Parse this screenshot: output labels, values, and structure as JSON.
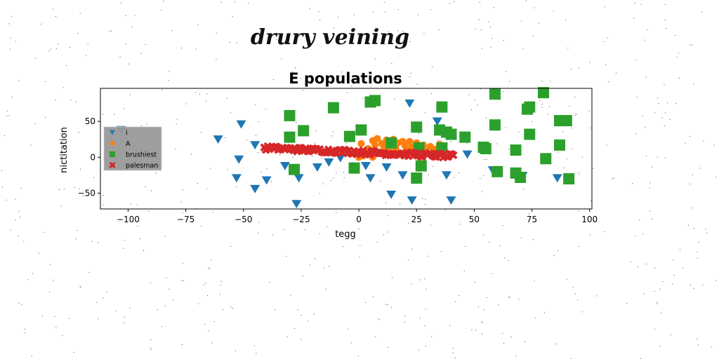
{
  "figure": {
    "suptitle": "drury veining"
  },
  "chart_data": {
    "type": "scatter",
    "title": "E populations",
    "xlabel": "tegg",
    "ylabel": "nictitation",
    "xlim": [
      -112,
      101
    ],
    "ylim": [
      -72,
      96
    ],
    "xticks": [
      -100,
      -75,
      -50,
      -25,
      0,
      25,
      50,
      75,
      100
    ],
    "xtick_labels": [
      "−100",
      "−75",
      "−50",
      "−25",
      "0",
      "25",
      "50",
      "75",
      "100"
    ],
    "yticks": [
      -50,
      0,
      50
    ],
    "ytick_labels": [
      "−50",
      "0",
      "50"
    ],
    "grid": false,
    "legend_position": "center-left",
    "series": [
      {
        "name": "i",
        "marker": "triangle-down",
        "color": "#1f77b4",
        "points": [
          [
            -103,
            38
          ],
          [
            -61,
            25
          ],
          [
            -51,
            46
          ],
          [
            -52,
            -3
          ],
          [
            -53,
            -29
          ],
          [
            -45,
            17
          ],
          [
            -45,
            -44
          ],
          [
            -40,
            -32
          ],
          [
            -32,
            -12
          ],
          [
            -27,
            -65
          ],
          [
            -26,
            -29
          ],
          [
            -18,
            -14
          ],
          [
            -13,
            -7
          ],
          [
            -8,
            -1
          ],
          [
            3,
            -12
          ],
          [
            5,
            -29
          ],
          [
            12,
            -14
          ],
          [
            14,
            -52
          ],
          [
            19,
            -25
          ],
          [
            22,
            75
          ],
          [
            23,
            -60
          ],
          [
            34,
            50
          ],
          [
            38,
            -25
          ],
          [
            40,
            -60
          ],
          [
            47,
            4
          ],
          [
            58,
            -18
          ],
          [
            71,
            -26
          ],
          [
            86,
            -29
          ]
        ]
      },
      {
        "name": "A",
        "marker": "circle",
        "color": "#ff7f0e",
        "points": [
          [
            1,
            19
          ],
          [
            4,
            12
          ],
          [
            6,
            23
          ],
          [
            7,
            17
          ],
          [
            8,
            26
          ],
          [
            9,
            7
          ],
          [
            10,
            19
          ],
          [
            11,
            14
          ],
          [
            12,
            24
          ],
          [
            13,
            9
          ],
          [
            14,
            18
          ],
          [
            15,
            25
          ],
          [
            16,
            12
          ],
          [
            17,
            20
          ],
          [
            18,
            6
          ],
          [
            19,
            22
          ],
          [
            20,
            16
          ],
          [
            21,
            10
          ],
          [
            22,
            22
          ],
          [
            23,
            14
          ],
          [
            24,
            7
          ],
          [
            25,
            20
          ],
          [
            26,
            12
          ],
          [
            28,
            17
          ],
          [
            29,
            9
          ],
          [
            31,
            15
          ],
          [
            33,
            11
          ],
          [
            35,
            18
          ],
          [
            0,
            0
          ],
          [
            3,
            5
          ],
          [
            6,
            0
          ],
          [
            2,
            2
          ]
        ]
      },
      {
        "name": "brushiest",
        "marker": "square",
        "color": "#2ca02c",
        "points": [
          [
            -30,
            58
          ],
          [
            -30,
            28
          ],
          [
            -28,
            -17
          ],
          [
            -24,
            37
          ],
          [
            -11,
            69
          ],
          [
            -4,
            29
          ],
          [
            -2,
            -15
          ],
          [
            1,
            38
          ],
          [
            5,
            77
          ],
          [
            7,
            79
          ],
          [
            14,
            20
          ],
          [
            25,
            42
          ],
          [
            25,
            -29
          ],
          [
            26,
            13
          ],
          [
            27,
            -12
          ],
          [
            35,
            38
          ],
          [
            36,
            70
          ],
          [
            36,
            13
          ],
          [
            38,
            35
          ],
          [
            40,
            32
          ],
          [
            46,
            28
          ],
          [
            54,
            14
          ],
          [
            55,
            12
          ],
          [
            59,
            88
          ],
          [
            59,
            45
          ],
          [
            60,
            -20
          ],
          [
            68,
            10
          ],
          [
            68,
            -22
          ],
          [
            70,
            -28
          ],
          [
            73,
            67
          ],
          [
            74,
            70
          ],
          [
            74,
            32
          ],
          [
            80,
            90
          ],
          [
            81,
            -2
          ],
          [
            87,
            51
          ],
          [
            87,
            17
          ],
          [
            90,
            51
          ],
          [
            91,
            -30
          ]
        ]
      },
      {
        "name": "palesman",
        "marker": "x",
        "color": "#d62728",
        "line": {
          "x_from": -41,
          "x_to": 41,
          "y_from": 13,
          "y_to": 1.5,
          "count": 110,
          "jitter": 3
        }
      }
    ]
  }
}
